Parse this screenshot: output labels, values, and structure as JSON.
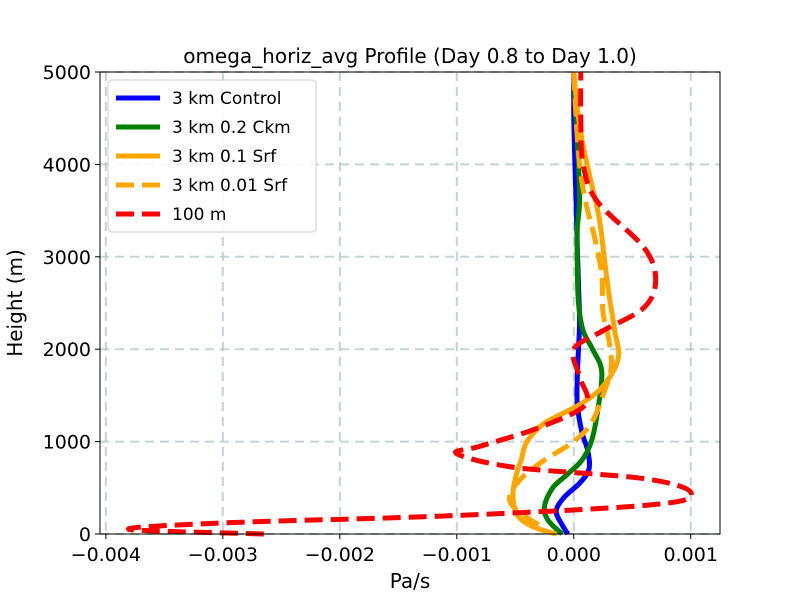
{
  "chart_data": {
    "type": "line",
    "title": "omega_horiz_avg Profile (Day 0.8 to Day 1.0)",
    "xlabel": "Pa/s",
    "ylabel": "Height (m)",
    "xlim": [
      -0.00405,
      0.00125
    ],
    "ylim": [
      0,
      5000
    ],
    "xticks": [
      -0.004,
      -0.003,
      -0.002,
      -0.001,
      0.0,
      0.001
    ],
    "xtick_labels": [
      "−0.004",
      "−0.003",
      "−0.002",
      "−0.001",
      "0.000",
      "0.001"
    ],
    "yticks": [
      0,
      1000,
      2000,
      3000,
      4000,
      5000
    ],
    "ytick_labels": [
      "0",
      "1000",
      "2000",
      "3000",
      "4000",
      "5000"
    ],
    "grid": true,
    "legend_position": "upper-left",
    "series": [
      {
        "name": "3 km Control",
        "color": "#0000ff",
        "dash": "solid",
        "points": [
          [
            -5e-05,
            0
          ],
          [
            -0.0001,
            100
          ],
          [
            -0.00015,
            250
          ],
          [
            -8e-05,
            400
          ],
          [
            5e-05,
            550
          ],
          [
            0.00013,
            700
          ],
          [
            0.00012,
            900
          ],
          [
            7e-05,
            1100
          ],
          [
            3e-05,
            1400
          ],
          [
            3e-05,
            1700
          ],
          [
            4e-05,
            2000
          ],
          [
            5e-05,
            2300
          ],
          [
            4e-05,
            2700
          ],
          [
            3e-05,
            3100
          ],
          [
            2e-05,
            3600
          ],
          [
            1e-05,
            4000
          ],
          [
            0.0,
            4500
          ],
          [
            0.0,
            5000
          ]
        ]
      },
      {
        "name": "3 km 0.2 Ckm",
        "color": "#008000",
        "dash": "solid",
        "points": [
          [
            -0.0001,
            0
          ],
          [
            -0.00022,
            150
          ],
          [
            -0.00025,
            300
          ],
          [
            -0.00018,
            500
          ],
          [
            -5e-05,
            650
          ],
          [
            7e-05,
            800
          ],
          [
            0.00015,
            1000
          ],
          [
            0.0002,
            1300
          ],
          [
            0.00024,
            1750
          ],
          [
            0.00016,
            2000
          ],
          [
            8e-05,
            2200
          ],
          [
            4e-05,
            2500
          ],
          [
            3e-05,
            2900
          ],
          [
            3e-05,
            3300
          ],
          [
            5e-05,
            3600
          ],
          [
            4e-05,
            4000
          ],
          [
            2e-05,
            4500
          ],
          [
            0.0,
            5000
          ]
        ]
      },
      {
        "name": "3 km 0.1 Srf",
        "color": "#ffa500",
        "dash": "solid",
        "points": [
          [
            -0.00015,
            0
          ],
          [
            -0.00035,
            80
          ],
          [
            -0.00048,
            200
          ],
          [
            -0.00052,
            400
          ],
          [
            -0.0005,
            600
          ],
          [
            -0.00045,
            800
          ],
          [
            -0.0004,
            1000
          ],
          [
            -0.00025,
            1200
          ],
          [
            5e-05,
            1400
          ],
          [
            0.00025,
            1600
          ],
          [
            0.00038,
            1900
          ],
          [
            0.00035,
            2200
          ],
          [
            0.0003,
            2600
          ],
          [
            0.00026,
            3000
          ],
          [
            0.00022,
            3400
          ],
          [
            0.00015,
            3800
          ],
          [
            8e-05,
            4200
          ],
          [
            3e-05,
            4600
          ],
          [
            0.0,
            5000
          ]
        ]
      },
      {
        "name": "3 km 0.01 Srf",
        "color": "#ffa500",
        "dash": "dashed",
        "points": [
          [
            -0.0003,
            100
          ],
          [
            -0.00048,
            250
          ],
          [
            -0.00055,
            400
          ],
          [
            -0.00045,
            600
          ],
          [
            -0.00025,
            800
          ],
          [
            0.0,
            1000
          ],
          [
            0.00015,
            1200
          ],
          [
            0.00025,
            1500
          ],
          [
            0.00032,
            1800
          ],
          [
            0.0003,
            2100
          ],
          [
            0.00025,
            2400
          ],
          [
            0.00024,
            2800
          ],
          [
            0.00018,
            3200
          ],
          [
            0.0001,
            3600
          ],
          [
            5e-05,
            4000
          ],
          [
            2e-05,
            4500
          ],
          [
            0.0,
            5000
          ]
        ]
      },
      {
        "name": "100 m",
        "color": "#ff0000",
        "dash": "dashed",
        "points": [
          [
            -0.00265,
            0
          ],
          [
            -0.0038,
            50
          ],
          [
            -0.003,
            120
          ],
          [
            -0.001,
            200
          ],
          [
            0.0007,
            320
          ],
          [
            0.001,
            450
          ],
          [
            0.0006,
            600
          ],
          [
            -0.0005,
            720
          ],
          [
            -0.001,
            870
          ],
          [
            -0.0008,
            950
          ],
          [
            -0.0003,
            1150
          ],
          [
            0.0001,
            1400
          ],
          [
            5e-05,
            1700
          ],
          [
            0.0,
            2000
          ],
          [
            0.00025,
            2200
          ],
          [
            0.0006,
            2450
          ],
          [
            0.0007,
            2750
          ],
          [
            0.0006,
            3100
          ],
          [
            0.0002,
            3600
          ],
          [
            8e-05,
            4000
          ],
          [
            6e-05,
            4500
          ],
          [
            6e-05,
            5000
          ]
        ]
      }
    ]
  }
}
